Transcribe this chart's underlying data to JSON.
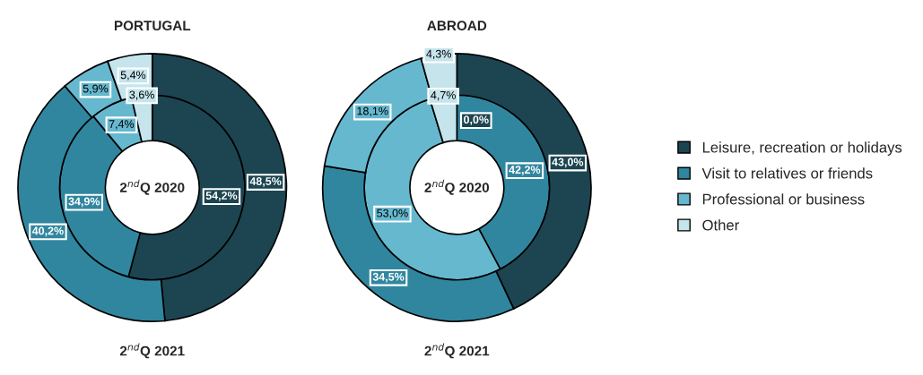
{
  "chart_data": [
    {
      "type": "donut",
      "title": "PORTUGAL",
      "colors": [
        "#1c4551",
        "#31869f",
        "#66b8cf",
        "#c6e4ec"
      ],
      "series": [
        {
          "name": "2$^{nd}$Q 2020",
          "values": [
            54.2,
            34.9,
            7.4,
            3.6
          ],
          "value_labels": [
            "54,2%",
            "34,9%",
            "7,4%",
            "3,6%"
          ]
        },
        {
          "name": "2$^{nd}$Q 2021",
          "values": [
            48.5,
            40.2,
            5.9,
            5.4
          ],
          "value_labels": [
            "48,5%",
            "40,2%",
            "5,9%",
            "5,4%"
          ]
        }
      ]
    },
    {
      "type": "donut",
      "title": "ABROAD",
      "categories": [
        "Leisure, recreation or holidays",
        "Visit to relatives or friends",
        "Professional or business",
        "Other"
      ],
      "colors": [
        "#1c4551",
        "#31869f",
        "#66b8cf",
        "#c6e4ec"
      ],
      "legend": "right",
      "series": [
        {
          "name": "2$^{nd}$Q 2020",
          "values": [
            0.0,
            42.2,
            53.0,
            4.7
          ],
          "value_labels": [
            "0,0%",
            "42,2%",
            "53,0%",
            "4,7%"
          ]
        },
        {
          "name": "2$^{nd}$Q 2021",
          "values": [
            43.0,
            34.5,
            18.1,
            4.3
          ],
          "value_labels": [
            "43,0%",
            "34,5%",
            "18,1%",
            "4,3%"
          ]
        }
      ]
    }
  ]
}
